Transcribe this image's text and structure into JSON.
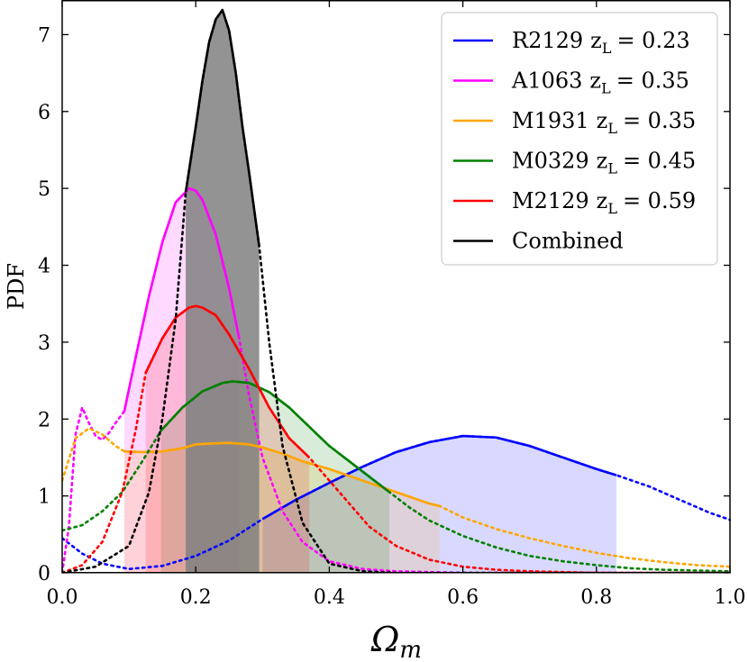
{
  "chart_data": {
    "type": "line",
    "xlabel_main": "Ω",
    "xlabel_sub": "m",
    "ylabel": "PDF",
    "xlim": [
      0,
      1
    ],
    "ylim": [
      0,
      7.45
    ],
    "xticks": [
      0.0,
      0.2,
      0.4,
      0.6,
      0.8,
      1.0
    ],
    "xtick_labels": [
      "0.0",
      "0.2",
      "0.4",
      "0.6",
      "0.8",
      "1.0"
    ],
    "yticks": [
      0,
      1,
      2,
      3,
      4,
      5,
      6,
      7
    ],
    "ytick_labels": [
      "0",
      "1",
      "2",
      "3",
      "4",
      "5",
      "6",
      "7"
    ],
    "grid": false,
    "legend_position": "top-right",
    "series": [
      {
        "name": "R2129",
        "name_sub": "L",
        "name_value": "= 0.23",
        "color": "#0000ff",
        "interval": [
          0.3,
          0.83
        ],
        "x": [
          0.0,
          0.03,
          0.06,
          0.1,
          0.15,
          0.2,
          0.25,
          0.3,
          0.35,
          0.4,
          0.45,
          0.5,
          0.55,
          0.6,
          0.65,
          0.7,
          0.75,
          0.8,
          0.83,
          0.88,
          0.93,
          0.97,
          1.0
        ],
        "y": [
          0.45,
          0.25,
          0.12,
          0.05,
          0.09,
          0.22,
          0.42,
          0.7,
          0.95,
          1.17,
          1.38,
          1.57,
          1.7,
          1.78,
          1.76,
          1.65,
          1.5,
          1.35,
          1.27,
          1.12,
          0.93,
          0.78,
          0.69
        ]
      },
      {
        "name": "A1063",
        "name_sub": "L",
        "name_value": "= 0.35",
        "color": "#ff00ff",
        "interval": [
          0.093,
          0.265
        ],
        "x": [
          0.0,
          0.01,
          0.02,
          0.03,
          0.04,
          0.05,
          0.06,
          0.07,
          0.08,
          0.093,
          0.11,
          0.13,
          0.15,
          0.17,
          0.19,
          0.2,
          0.21,
          0.23,
          0.25,
          0.265,
          0.28,
          0.3,
          0.33,
          0.36,
          0.4,
          0.45,
          0.5,
          0.6,
          0.7,
          0.8,
          0.9,
          1.0
        ],
        "y": [
          0.0,
          0.6,
          1.8,
          2.15,
          1.95,
          1.78,
          1.73,
          1.82,
          1.95,
          2.1,
          2.8,
          3.6,
          4.3,
          4.82,
          5.0,
          4.97,
          4.85,
          4.4,
          3.7,
          3.05,
          2.3,
          1.5,
          0.8,
          0.4,
          0.15,
          0.05,
          0.02,
          0.0,
          0.0,
          0.0,
          0.0,
          0.0
        ]
      },
      {
        "name": "M1931",
        "name_sub": "L",
        "name_value": "= 0.35",
        "color": "#ffa500",
        "interval": [
          0.093,
          0.565
        ],
        "x": [
          0.0,
          0.02,
          0.04,
          0.06,
          0.08,
          0.093,
          0.12,
          0.15,
          0.18,
          0.2,
          0.22,
          0.25,
          0.28,
          0.3,
          0.33,
          0.36,
          0.4,
          0.45,
          0.5,
          0.55,
          0.565,
          0.6,
          0.65,
          0.7,
          0.75,
          0.8,
          0.85,
          0.9,
          0.95,
          1.0
        ],
        "y": [
          1.2,
          1.75,
          1.88,
          1.8,
          1.65,
          1.58,
          1.57,
          1.58,
          1.62,
          1.67,
          1.68,
          1.69,
          1.67,
          1.63,
          1.55,
          1.45,
          1.35,
          1.2,
          1.05,
          0.9,
          0.87,
          0.72,
          0.57,
          0.45,
          0.35,
          0.26,
          0.19,
          0.14,
          0.1,
          0.08
        ]
      },
      {
        "name": "M0329",
        "name_sub": "L",
        "name_value": "= 0.45",
        "color": "#008000",
        "interval": [
          0.148,
          0.49
        ],
        "x": [
          0.0,
          0.03,
          0.06,
          0.09,
          0.12,
          0.148,
          0.18,
          0.21,
          0.24,
          0.255,
          0.28,
          0.31,
          0.34,
          0.37,
          0.4,
          0.43,
          0.46,
          0.49,
          0.52,
          0.55,
          0.6,
          0.65,
          0.7,
          0.75,
          0.8,
          0.85,
          0.9,
          1.0
        ],
        "y": [
          0.55,
          0.62,
          0.8,
          1.05,
          1.45,
          1.85,
          2.15,
          2.36,
          2.47,
          2.49,
          2.47,
          2.35,
          2.15,
          1.9,
          1.65,
          1.45,
          1.25,
          1.05,
          0.85,
          0.68,
          0.48,
          0.33,
          0.22,
          0.15,
          0.1,
          0.06,
          0.04,
          0.02
        ]
      },
      {
        "name": "M2129",
        "name_sub": "L",
        "name_value": "= 0.59",
        "color": "#ff0000",
        "interval": [
          0.125,
          0.37
        ],
        "x": [
          0.0,
          0.03,
          0.06,
          0.09,
          0.11,
          0.125,
          0.15,
          0.17,
          0.19,
          0.2,
          0.21,
          0.23,
          0.25,
          0.28,
          0.31,
          0.34,
          0.37,
          0.4,
          0.43,
          0.46,
          0.5,
          0.55,
          0.6,
          0.65,
          0.7,
          0.75,
          0.8,
          1.0
        ],
        "y": [
          0.0,
          0.1,
          0.4,
          1.05,
          1.85,
          2.6,
          3.05,
          3.32,
          3.45,
          3.47,
          3.45,
          3.35,
          3.1,
          2.65,
          2.15,
          1.75,
          1.5,
          1.2,
          0.9,
          0.6,
          0.35,
          0.17,
          0.08,
          0.04,
          0.02,
          0.01,
          0.0,
          0.0
        ]
      },
      {
        "name": "Combined",
        "name_sub": "",
        "name_value": "",
        "color": "#000000",
        "fill": "#808080",
        "interval": [
          0.185,
          0.295
        ],
        "x": [
          0.0,
          0.05,
          0.1,
          0.13,
          0.15,
          0.17,
          0.185,
          0.2,
          0.21,
          0.22,
          0.23,
          0.24,
          0.25,
          0.26,
          0.27,
          0.28,
          0.295,
          0.31,
          0.33,
          0.36,
          0.4,
          0.45,
          0.5,
          1.0
        ],
        "y": [
          0.0,
          0.08,
          0.35,
          1.05,
          2.0,
          3.3,
          4.95,
          5.8,
          6.4,
          6.9,
          7.2,
          7.32,
          7.05,
          6.5,
          5.8,
          5.2,
          4.25,
          3.0,
          1.65,
          0.65,
          0.12,
          0.02,
          0.0,
          0.0
        ]
      }
    ]
  }
}
